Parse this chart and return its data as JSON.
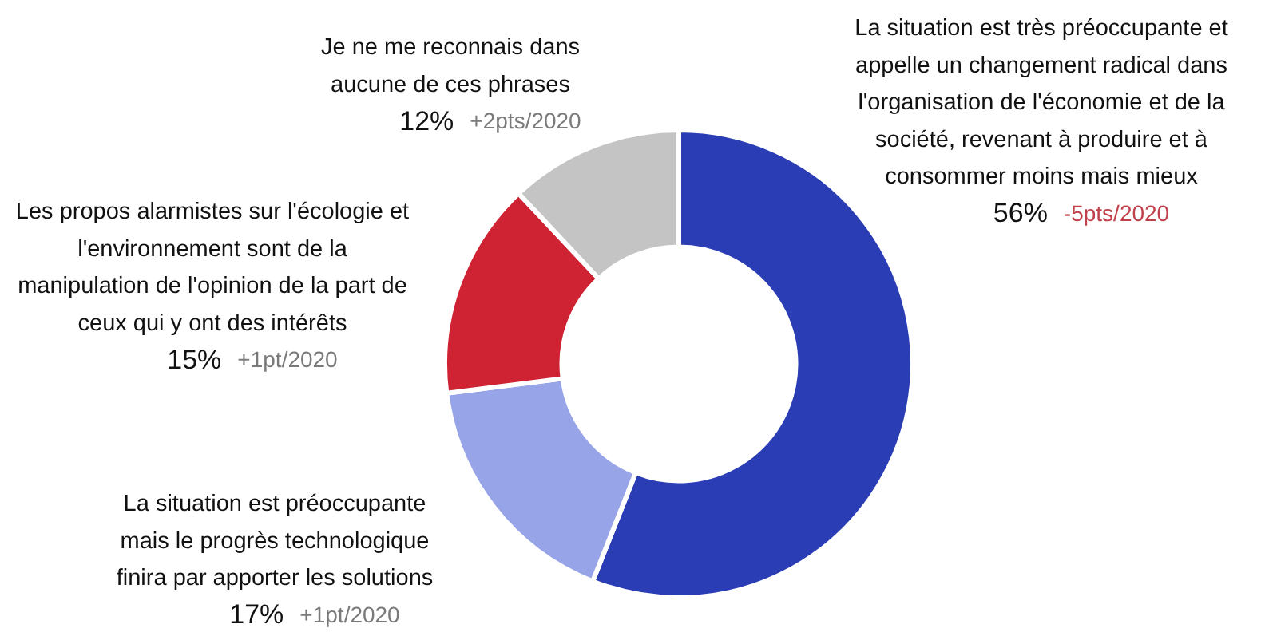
{
  "chart_data": {
    "type": "donut",
    "categories": [
      "La situation est très préoccupante et appelle un changement radical dans l'organisation de l'économie et de la société, revenant à produire et à consommer moins mais mieux",
      "La situation est préoccupante mais le progrès technologique finira par apporter les solutions",
      "Les propos alarmistes sur l'écologie et l'environnement sont de la manipulation de l'opinion de la part de ceux qui y ont des intérêts",
      "Je ne me reconnais dans aucune de ces phrases"
    ],
    "values": [
      56,
      17,
      15,
      12
    ],
    "colors": [
      "#2b3db4",
      "#97a4e8",
      "#cf2232",
      "#c4c4c4"
    ],
    "value_labels": [
      "56%",
      "17%",
      "15%",
      "12%"
    ],
    "annotations": [
      {
        "text": "-5pts/2020",
        "x": "La situation est très préoccupante et appelle un changement radical dans l'organisation de l'économie et de la société, revenant à produire et à consommer moins mais mieux"
      },
      {
        "text": "+1pt/2020",
        "x": "La situation est préoccupante mais le progrès technologique finira par apporter les solutions"
      },
      {
        "text": "+1pt/2020",
        "x": "Les propos alarmistes sur l'écologie et l'environnement sont de la manipulation de l'opinion de la part de ceux qui y ont des intérêts"
      },
      {
        "text": "+2pts/2020",
        "x": "Je ne me reconnais dans aucune de ces phrases"
      }
    ]
  }
}
